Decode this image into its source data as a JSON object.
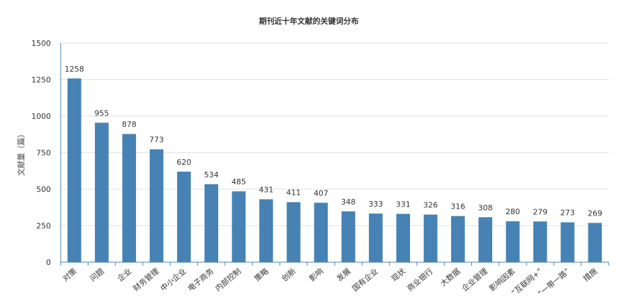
{
  "chart_data": {
    "type": "bar",
    "title": "期刊近十年文献的关键词分布",
    "xlabel": "",
    "ylabel": "文献量（篇）",
    "ylim": [
      0,
      1500
    ],
    "yticks": [
      0,
      250,
      500,
      750,
      1000,
      1250,
      1500
    ],
    "grid": true,
    "bar_color": "#4682b4",
    "categories": [
      "对策",
      "问题",
      "企业",
      "财务管理",
      "中小企业",
      "电子商务",
      "内部控制",
      "策略",
      "创新",
      "影响",
      "发展",
      "国有企业",
      "现状",
      "商业银行",
      "大数据",
      "企业管理",
      "影响因素",
      "“互联网+”",
      "“一带一路”",
      "措施"
    ],
    "values": [
      1258,
      955,
      878,
      773,
      620,
      534,
      485,
      431,
      411,
      407,
      348,
      333,
      331,
      326,
      316,
      308,
      280,
      279,
      273,
      269
    ],
    "data_labels": [
      "1258",
      "955",
      "878",
      "773",
      "620",
      "534",
      "485",
      "431",
      "411",
      "407",
      "348",
      "333",
      "331",
      "326",
      "316",
      "308",
      "280",
      "279",
      "273",
      "269"
    ]
  }
}
